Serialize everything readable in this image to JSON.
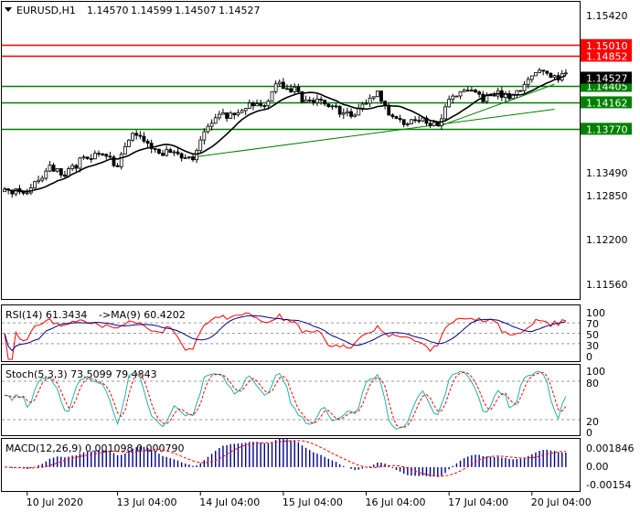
{
  "chart_data": [
    {
      "type": "candlestick",
      "title": "EURUSD,H1",
      "ohlc_header": [
        "1.14570",
        "1.14599",
        "1.14507",
        "1.14527"
      ],
      "y_ticks": [
        "1.15420",
        "1.14852",
        "1.13490",
        "1.12850",
        "1.12200",
        "1.11560"
      ],
      "ylim": [
        1.1125,
        1.1565
      ],
      "price_tag": {
        "value": "1.14527",
        "color": "#000000"
      },
      "levels": [
        {
          "value": 1.1501,
          "label": "1.15010",
          "color": "#ff0000"
        },
        {
          "value": 1.14852,
          "label": "1.14852",
          "color": "#ff0000"
        },
        {
          "value": 1.14405,
          "label": "1.14405",
          "color": "#008000"
        },
        {
          "value": 1.14162,
          "label": "1.14162",
          "color": "#008000"
        },
        {
          "value": 1.1377,
          "label": "1.13770",
          "color": "#008000"
        }
      ],
      "trendlines": [
        {
          "from": [
            50,
            1.1335
          ],
          "to": [
            146,
            1.1406
          ],
          "color": "#008000"
        },
        {
          "from": [
            115,
            1.138
          ],
          "to": [
            146,
            1.1443
          ],
          "color": "#008000"
        }
      ],
      "moving_average_color": "#000000",
      "x_ticks": [
        {
          "index": 6,
          "label": "10 Jul 2020"
        },
        {
          "index": 30,
          "label": "13 Jul 04:00"
        },
        {
          "index": 52,
          "label": "14 Jul 04:00"
        },
        {
          "index": 74,
          "label": "15 Jul 04:00"
        },
        {
          "index": 96,
          "label": "16 Jul 04:00"
        },
        {
          "index": 118,
          "label": "17 Jul 04:00"
        },
        {
          "index": 140,
          "label": "20 Jul 04:00"
        }
      ],
      "keyframes": [
        [
          0,
          1.129
        ],
        [
          5,
          1.128
        ],
        [
          8,
          1.1298
        ],
        [
          12,
          1.132
        ],
        [
          16,
          1.131
        ],
        [
          22,
          1.1338
        ],
        [
          27,
          1.1338
        ],
        [
          30,
          1.1322
        ],
        [
          34,
          1.1375
        ],
        [
          37,
          1.1362
        ],
        [
          39,
          1.1345
        ],
        [
          44,
          1.134
        ],
        [
          50,
          1.1335
        ],
        [
          53,
          1.137
        ],
        [
          57,
          1.14
        ],
        [
          60,
          1.1395
        ],
        [
          65,
          1.141
        ],
        [
          69,
          1.1408
        ],
        [
          72,
          1.1445
        ],
        [
          77,
          1.1435
        ],
        [
          79,
          1.142
        ],
        [
          84,
          1.1415
        ],
        [
          88,
          1.1405
        ],
        [
          92,
          1.1395
        ],
        [
          96,
          1.142
        ],
        [
          99,
          1.1435
        ],
        [
          102,
          1.14
        ],
        [
          106,
          1.1385
        ],
        [
          110,
          1.139
        ],
        [
          115,
          1.1385
        ],
        [
          118,
          1.142
        ],
        [
          121,
          1.1433
        ],
        [
          124,
          1.1438
        ],
        [
          127,
          1.142
        ],
        [
          131,
          1.143
        ],
        [
          135,
          1.1425
        ],
        [
          138,
          1.144
        ],
        [
          141,
          1.1462
        ],
        [
          144,
          1.1455
        ],
        [
          146,
          1.1453
        ]
      ]
    },
    {
      "type": "line",
      "title": "RSI(14) 61.3434",
      "subtitle": "->MA(9) 60.4202",
      "y_ticks": [
        "100",
        "70",
        "50",
        "30",
        "0"
      ],
      "ylim": [
        0,
        100
      ],
      "levels": [
        70,
        50,
        30
      ]
    },
    {
      "type": "line",
      "title": "Stoch(5,3,3) 73.5099 79.4843",
      "y_ticks": [
        "100",
        "80",
        "20",
        "0"
      ],
      "ylim": [
        0,
        100
      ],
      "levels": [
        80,
        20
      ]
    },
    {
      "type": "bar",
      "title": "MACD(12,26,9) 0.001098 0.000790",
      "y_ticks": [
        "0.001846",
        "0.00",
        "-0.00154"
      ],
      "ylim": [
        -0.00154,
        0.001846
      ]
    }
  ]
}
